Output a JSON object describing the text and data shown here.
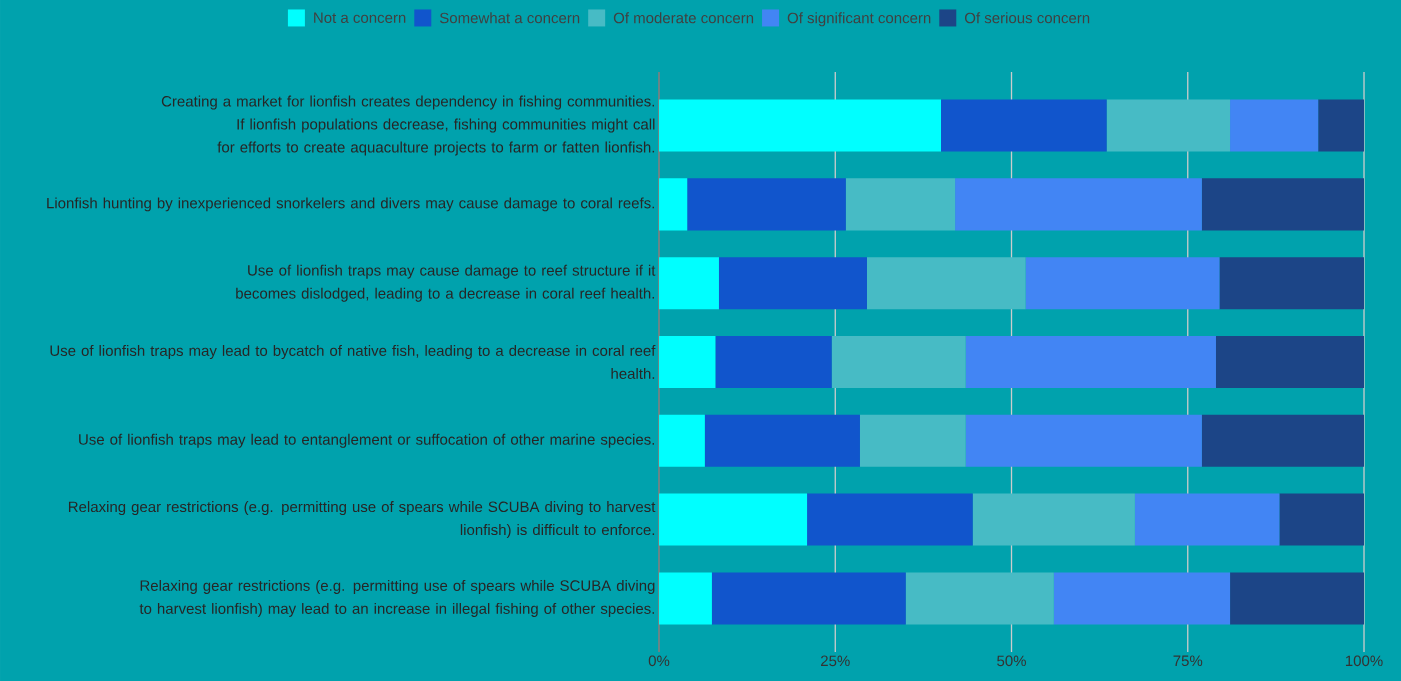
{
  "chart_data": {
    "type": "bar",
    "orientation": "horizontal",
    "stacked": true,
    "categories": [
      "Creating a market for lionfish creates dependency in fishing communities. If lionfish populations decrease,  fishing communities might call for efforts to create aquaculture projects to farm or fatten lionfish.",
      "Lionfish hunting by inexperienced snorkelers and divers may cause damage to coral reefs.",
      "Use of lionfish traps may cause damage to reef structure if it becomes dislodged, leading to a decrease in coral reef health.",
      "Use of lionfish traps may lead to bycatch of native fish, leading to a decrease in coral reef health.",
      "Use of lionfish traps may lead to entanglement or suffocation of other marine species.",
      "Relaxing gear restrictions (e.g. permitting use of spears while SCUBA diving to harvest lionfish) is difficult to enforce.",
      "Relaxing gear restrictions (e.g. permitting use of spears while SCUBA diving to harvest lionfish) may lead to an increase in illegal fishing of other species."
    ],
    "series": [
      {
        "name": "Not a concern",
        "color": "#00ffff",
        "values": [
          40,
          4,
          8.5,
          8,
          6.5,
          21,
          7.5
        ]
      },
      {
        "name": "Somewhat a concern",
        "color": "#1155cc",
        "values": [
          23.5,
          22.5,
          21,
          16.5,
          22,
          23.5,
          27.5
        ]
      },
      {
        "name": "Of moderate concern",
        "color": "#47bbc5",
        "values": [
          17.5,
          15.5,
          22.5,
          19,
          15,
          23,
          21
        ]
      },
      {
        "name": "Of significant concern",
        "color": "#4285f4",
        "values": [
          12.5,
          35,
          27.5,
          35.5,
          33.5,
          20.5,
          25
        ]
      },
      {
        "name": "Of serious concern",
        "color": "#1c4587",
        "values": [
          6.5,
          23,
          20.5,
          21,
          23,
          12,
          19
        ]
      }
    ],
    "xlim": [
      0,
      100
    ],
    "xticks": [
      {
        "value": 0,
        "label": "0%"
      },
      {
        "value": 25,
        "label": "25%"
      },
      {
        "value": 50,
        "label": "50%"
      },
      {
        "value": 75,
        "label": "75%"
      },
      {
        "value": 100,
        "label": "100%"
      }
    ],
    "grid": "x",
    "legend": "top"
  }
}
